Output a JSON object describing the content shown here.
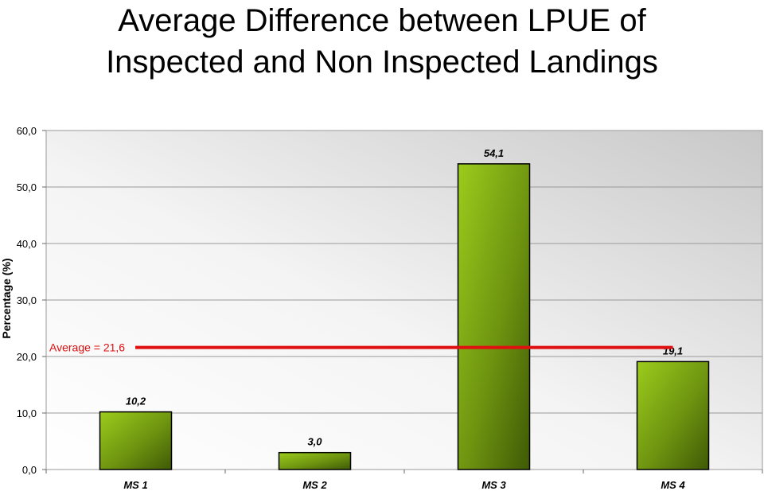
{
  "chart_data": {
    "type": "bar",
    "title_line1": "Average Difference between LPUE of",
    "title_line2": "Inspected and Non Inspected Landings",
    "ylabel": "Percentage (%)",
    "xlabel": "",
    "categories": [
      "MS 1",
      "MS 2",
      "MS 3",
      "MS 4"
    ],
    "values": [
      10.2,
      3.0,
      54.1,
      19.1
    ],
    "value_labels": [
      "10,2",
      "3,0",
      "54,1",
      "19,1"
    ],
    "ylim": [
      0,
      60
    ],
    "yticks": [
      0,
      10,
      20,
      30,
      40,
      50,
      60
    ],
    "ytick_labels": [
      "0,0",
      "10,0",
      "20,0",
      "30,0",
      "40,0",
      "50,0",
      "60,0"
    ],
    "grid": true,
    "average": {
      "value": 21.6,
      "label": "Average = 21,6",
      "color": "#e01010"
    },
    "bar_color_light": "#9ccc1c",
    "bar_color_dark": "#3f5a06"
  }
}
